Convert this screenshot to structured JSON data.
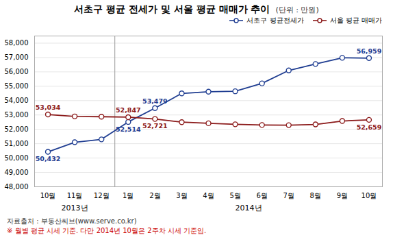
{
  "chart_data": {
    "type": "line",
    "title": "서초구 평균 전세가 및 서울 평균 매매가 추이",
    "subtitle": "(단위 : 만원)",
    "categories": [
      "10월",
      "11월",
      "12월",
      "1월",
      "2월",
      "3월",
      "4월",
      "5월",
      "6월",
      "7월",
      "8월",
      "9월",
      "10월"
    ],
    "series": [
      {
        "name": "서초구 평균전세가",
        "color": "#1f3d91",
        "marker": "circle",
        "values": [
          50432,
          51100,
          51300,
          52514,
          53479,
          54500,
          54620,
          54650,
          55200,
          56100,
          56550,
          56980,
          56959
        ],
        "value_labels": [
          "50,432",
          null,
          null,
          "52,514",
          "53,479",
          null,
          null,
          null,
          null,
          null,
          null,
          null,
          "56,959"
        ]
      },
      {
        "name": "서울 평균 매매가",
        "color": "#8b1a1a",
        "marker": "circle",
        "values": [
          53034,
          52900,
          52880,
          52847,
          52721,
          52500,
          52420,
          52350,
          52300,
          52290,
          52340,
          52580,
          52659
        ],
        "value_labels": [
          "53,034",
          null,
          null,
          "52,847",
          "52,721",
          null,
          null,
          null,
          null,
          null,
          null,
          null,
          "52,659"
        ]
      }
    ],
    "ylim": [
      48000,
      58500
    ],
    "yticks": [
      {
        "value": 48000,
        "label": "48,000"
      },
      {
        "value": 49000,
        "label": "49,000"
      },
      {
        "value": 50000,
        "label": "50,000"
      },
      {
        "value": 51000,
        "label": "51,000"
      },
      {
        "value": 52000,
        "label": "52,000"
      },
      {
        "value": 53000,
        "label": "53,000"
      },
      {
        "value": 54000,
        "label": "54,000"
      },
      {
        "value": 55000,
        "label": "55,000"
      },
      {
        "value": 56000,
        "label": "56,000"
      },
      {
        "value": 57000,
        "label": "57,000"
      },
      {
        "value": 58000,
        "label": "58,000"
      }
    ],
    "grid": true,
    "legend": "top",
    "annotations": [
      {
        "type": "rule",
        "x": 2.5
      },
      {
        "text": "2013년",
        "x": 1
      },
      {
        "text": "2014년",
        "x": 7.5
      }
    ],
    "footnotes": [
      {
        "text": "자료출처 : 부동산씨브(www.serve.co.kr)",
        "color": "#333333"
      },
      {
        "text": "※ 월별 평균 시세 기준. 다만 2014년 10월은 2주차 시세 기준임.",
        "color": "#cc0000"
      }
    ]
  }
}
